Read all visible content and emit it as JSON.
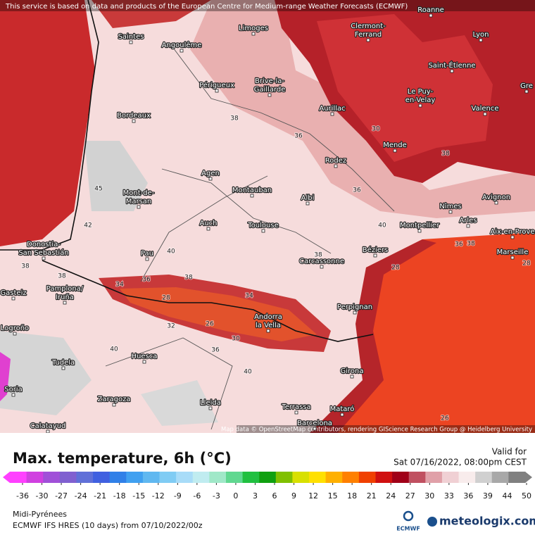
{
  "header": {
    "attribution": "This service is based on data and products of the European Centre for Medium-range Weather Forecasts (ECMWF)"
  },
  "map": {
    "cities": [
      {
        "lines": [
          "Roanne"
        ]
      },
      {
        "lines": [
          "Saintes"
        ]
      },
      {
        "lines": [
          "Angoulême"
        ]
      },
      {
        "lines": [
          "Limoges"
        ]
      },
      {
        "lines": [
          "Clermont-",
          "Ferrand"
        ]
      },
      {
        "lines": [
          "Lyon"
        ]
      },
      {
        "lines": [
          "Saint-Étienne"
        ]
      },
      {
        "lines": [
          "Périgueux"
        ]
      },
      {
        "lines": [
          "Brive-la-",
          "Gaillarde"
        ]
      },
      {
        "lines": [
          "Le Puy-",
          "en-Velay"
        ]
      },
      {
        "lines": [
          "Gre"
        ]
      },
      {
        "lines": [
          "Aurillac"
        ]
      },
      {
        "lines": [
          "Valence"
        ]
      },
      {
        "lines": [
          "Bordeaux"
        ]
      },
      {
        "lines": [
          "Mende"
        ]
      },
      {
        "lines": [
          "Rodez"
        ]
      },
      {
        "lines": [
          "Agen"
        ]
      },
      {
        "lines": [
          "Montauban"
        ]
      },
      {
        "lines": [
          "Albi"
        ]
      },
      {
        "lines": [
          "Avignon"
        ]
      },
      {
        "lines": [
          "Mont-de-",
          "Marsan"
        ]
      },
      {
        "lines": [
          "Nîmes"
        ]
      },
      {
        "lines": [
          "Arles"
        ]
      },
      {
        "lines": [
          "Auch"
        ]
      },
      {
        "lines": [
          "Toulouse"
        ]
      },
      {
        "lines": [
          "Montpellier"
        ]
      },
      {
        "lines": [
          "Aix-en-Prove"
        ]
      },
      {
        "lines": [
          "Donostia-",
          "San Sebastián"
        ]
      },
      {
        "lines": [
          "Pau"
        ]
      },
      {
        "lines": [
          "Béziers"
        ]
      },
      {
        "lines": [
          "Marseille"
        ]
      },
      {
        "lines": [
          "Carcassonne"
        ]
      },
      {
        "lines": [
          "Gasteiz"
        ]
      },
      {
        "lines": [
          "Pamplona/",
          "Iruña"
        ]
      },
      {
        "lines": [
          "Perpignan"
        ]
      },
      {
        "lines": [
          "Andorra",
          "la Vella"
        ]
      },
      {
        "lines": [
          "Logroño"
        ]
      },
      {
        "lines": [
          "Huesca"
        ]
      },
      {
        "lines": [
          "Tudela"
        ]
      },
      {
        "lines": [
          "Girona"
        ]
      },
      {
        "lines": [
          "Soria"
        ]
      },
      {
        "lines": [
          "Zaragoza"
        ]
      },
      {
        "lines": [
          "Lleida"
        ]
      },
      {
        "lines": [
          "Terrassa"
        ]
      },
      {
        "lines": [
          "Mataró"
        ]
      },
      {
        "lines": [
          "Barcelona"
        ]
      },
      {
        "lines": [
          "Calatayud"
        ]
      }
    ],
    "contour_labels": [
      38,
      36,
      30,
      38,
      36,
      45,
      42,
      40,
      40,
      38,
      38,
      36,
      38,
      34,
      38,
      36,
      38,
      28,
      28,
      34,
      28,
      32,
      26,
      30,
      36,
      40,
      40,
      26
    ],
    "credits": "Map data © OpenStreetMap contributors, rendering GIScience Research Group @ Heidelberg University"
  },
  "legend": {
    "title": "Max. temperature, 6h (°C)",
    "valid_label": "Valid for",
    "valid_time": "Sat 07/16/2022, 08:00pm CEST",
    "ticks": [
      -36,
      -30,
      -27,
      -24,
      -21,
      -18,
      -15,
      -12,
      -9,
      -6,
      -3,
      0,
      3,
      6,
      9,
      12,
      15,
      18,
      21,
      24,
      27,
      30,
      33,
      36,
      39,
      44,
      50
    ]
  },
  "footer": {
    "region": "Midi-Pyrénees",
    "model": "ECMWF IFS HRES (10 days) from 07/10/2022/00z",
    "logo_ecmwf": "ECMWF",
    "logo_brand": "meteologix.com"
  }
}
